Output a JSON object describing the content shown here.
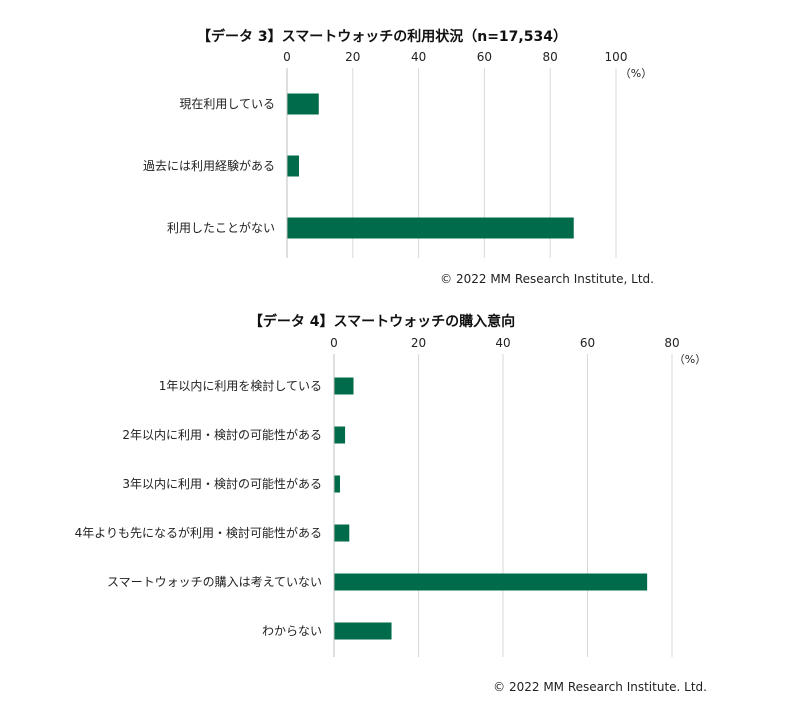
{
  "chart_data": [
    {
      "type": "bar",
      "orientation": "horizontal",
      "title": "【データ 3】スマートウォッチの利用状況（n=17,534）",
      "unit": "（%）",
      "xlim": [
        0,
        100
      ],
      "ticks": [
        0,
        20,
        40,
        60,
        80,
        100
      ],
      "grid": true,
      "categories": [
        "現在利用している",
        "過去には利用経験がある",
        "利用したことがない"
      ],
      "values": [
        9.5,
        3.5,
        87
      ],
      "color": "#006b4a",
      "credit": "© 2022 MM Research Institute, Ltd."
    },
    {
      "type": "bar",
      "orientation": "horizontal",
      "title": "【データ 4】スマートウォッチの購入意向",
      "unit": "（%）",
      "xlim": [
        0,
        80
      ],
      "ticks": [
        0,
        20,
        40,
        60,
        80
      ],
      "grid": true,
      "categories": [
        "1年以内に利用を検討している",
        "2年以内に利用・検討の可能性がある",
        "3年以内に利用・検討の可能性がある",
        "4年よりも先になるが利用・検討可能性がある",
        "スマートウォッチの購入は考えていない",
        "わからない"
      ],
      "values": [
        4.5,
        2.5,
        1.3,
        3.5,
        74,
        13.5
      ],
      "color": "#006b4a",
      "credit": "© 2022 MM Research Institute.  Ltd."
    }
  ]
}
